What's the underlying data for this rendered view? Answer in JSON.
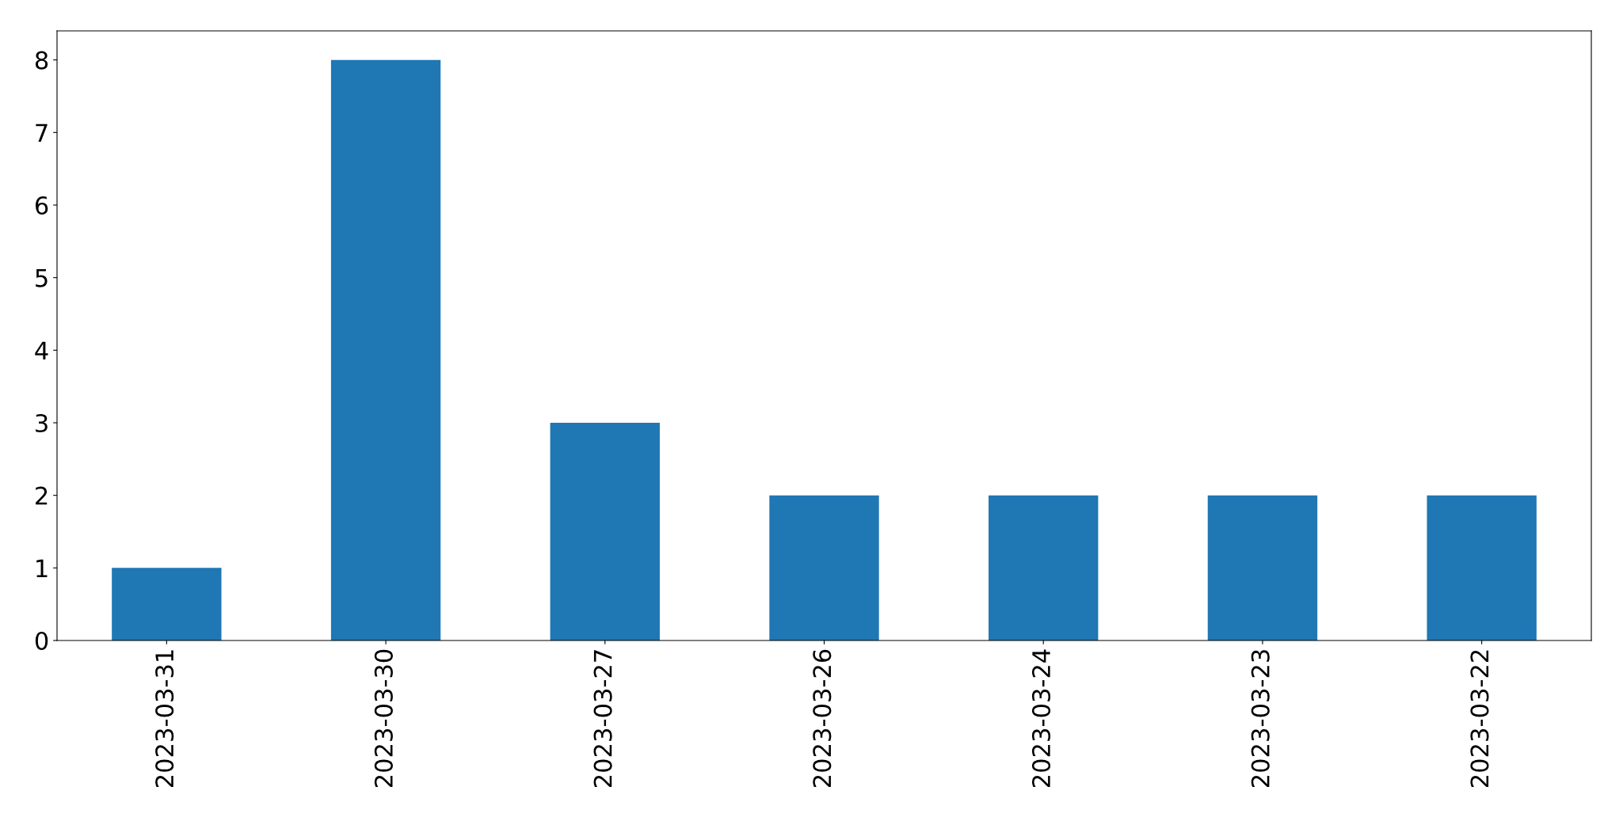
{
  "chart_data": {
    "type": "bar",
    "categories": [
      "2023-03-31",
      "2023-03-30",
      "2023-03-27",
      "2023-03-26",
      "2023-03-24",
      "2023-03-23",
      "2023-03-22"
    ],
    "values": [
      1,
      8,
      3,
      2,
      2,
      2,
      2
    ],
    "color": "#1f77b4",
    "ylim": [
      0,
      8.4
    ],
    "yticks": [
      0,
      1,
      2,
      3,
      4,
      5,
      6,
      7,
      8
    ],
    "grid": false
  }
}
